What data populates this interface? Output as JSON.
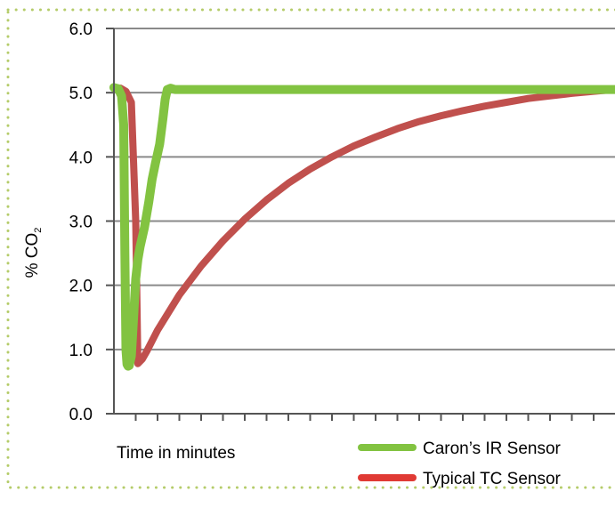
{
  "chart_data": {
    "type": "line",
    "title": "",
    "xlabel": "Time in minutes",
    "ylabel": "% CO",
    "ylabel_subscript": "2",
    "ylim": [
      0,
      6
    ],
    "y_ticks": [
      "0.0",
      "1.0",
      "2.0",
      "3.0",
      "4.0",
      "5.0",
      "6.0"
    ],
    "x_ticks": 22,
    "grid": "horizontal",
    "legend_position": "bottom-right",
    "series": [
      {
        "name": "Caron’s IR Sensor",
        "color": "#82c341",
        "x": [
          0,
          0.2,
          0.35,
          0.45,
          0.5,
          0.55,
          0.6,
          0.65,
          0.7,
          0.8,
          0.9,
          1.0,
          1.1,
          1.2,
          1.4,
          1.6,
          1.75,
          1.9,
          2.1,
          2.25,
          2.35,
          2.45,
          2.6,
          2.8,
          3.2,
          23
        ],
        "y": [
          5.08,
          5.06,
          4.95,
          4.5,
          2.5,
          1.0,
          0.77,
          0.74,
          0.75,
          0.9,
          1.5,
          2.1,
          2.4,
          2.6,
          2.9,
          3.3,
          3.65,
          3.9,
          4.2,
          4.6,
          4.9,
          5.05,
          5.07,
          5.05,
          5.05,
          5.05
        ]
      },
      {
        "name": "Typical TC Sensor",
        "color": "#c0504d",
        "x": [
          0,
          0.3,
          0.55,
          0.8,
          1.0,
          1.1,
          1.3,
          1.5,
          2,
          3,
          4,
          5,
          6,
          7,
          8,
          9,
          10,
          11,
          12,
          13,
          14,
          15,
          16,
          17,
          18,
          19,
          20,
          21,
          22,
          23
        ],
        "y": [
          5.08,
          5.07,
          5.02,
          4.85,
          3.0,
          0.78,
          0.85,
          0.97,
          1.3,
          1.85,
          2.3,
          2.69,
          3.03,
          3.33,
          3.59,
          3.81,
          4.0,
          4.17,
          4.31,
          4.44,
          4.55,
          4.64,
          4.72,
          4.79,
          4.85,
          4.91,
          4.95,
          4.99,
          5.02,
          5.05
        ]
      }
    ]
  }
}
